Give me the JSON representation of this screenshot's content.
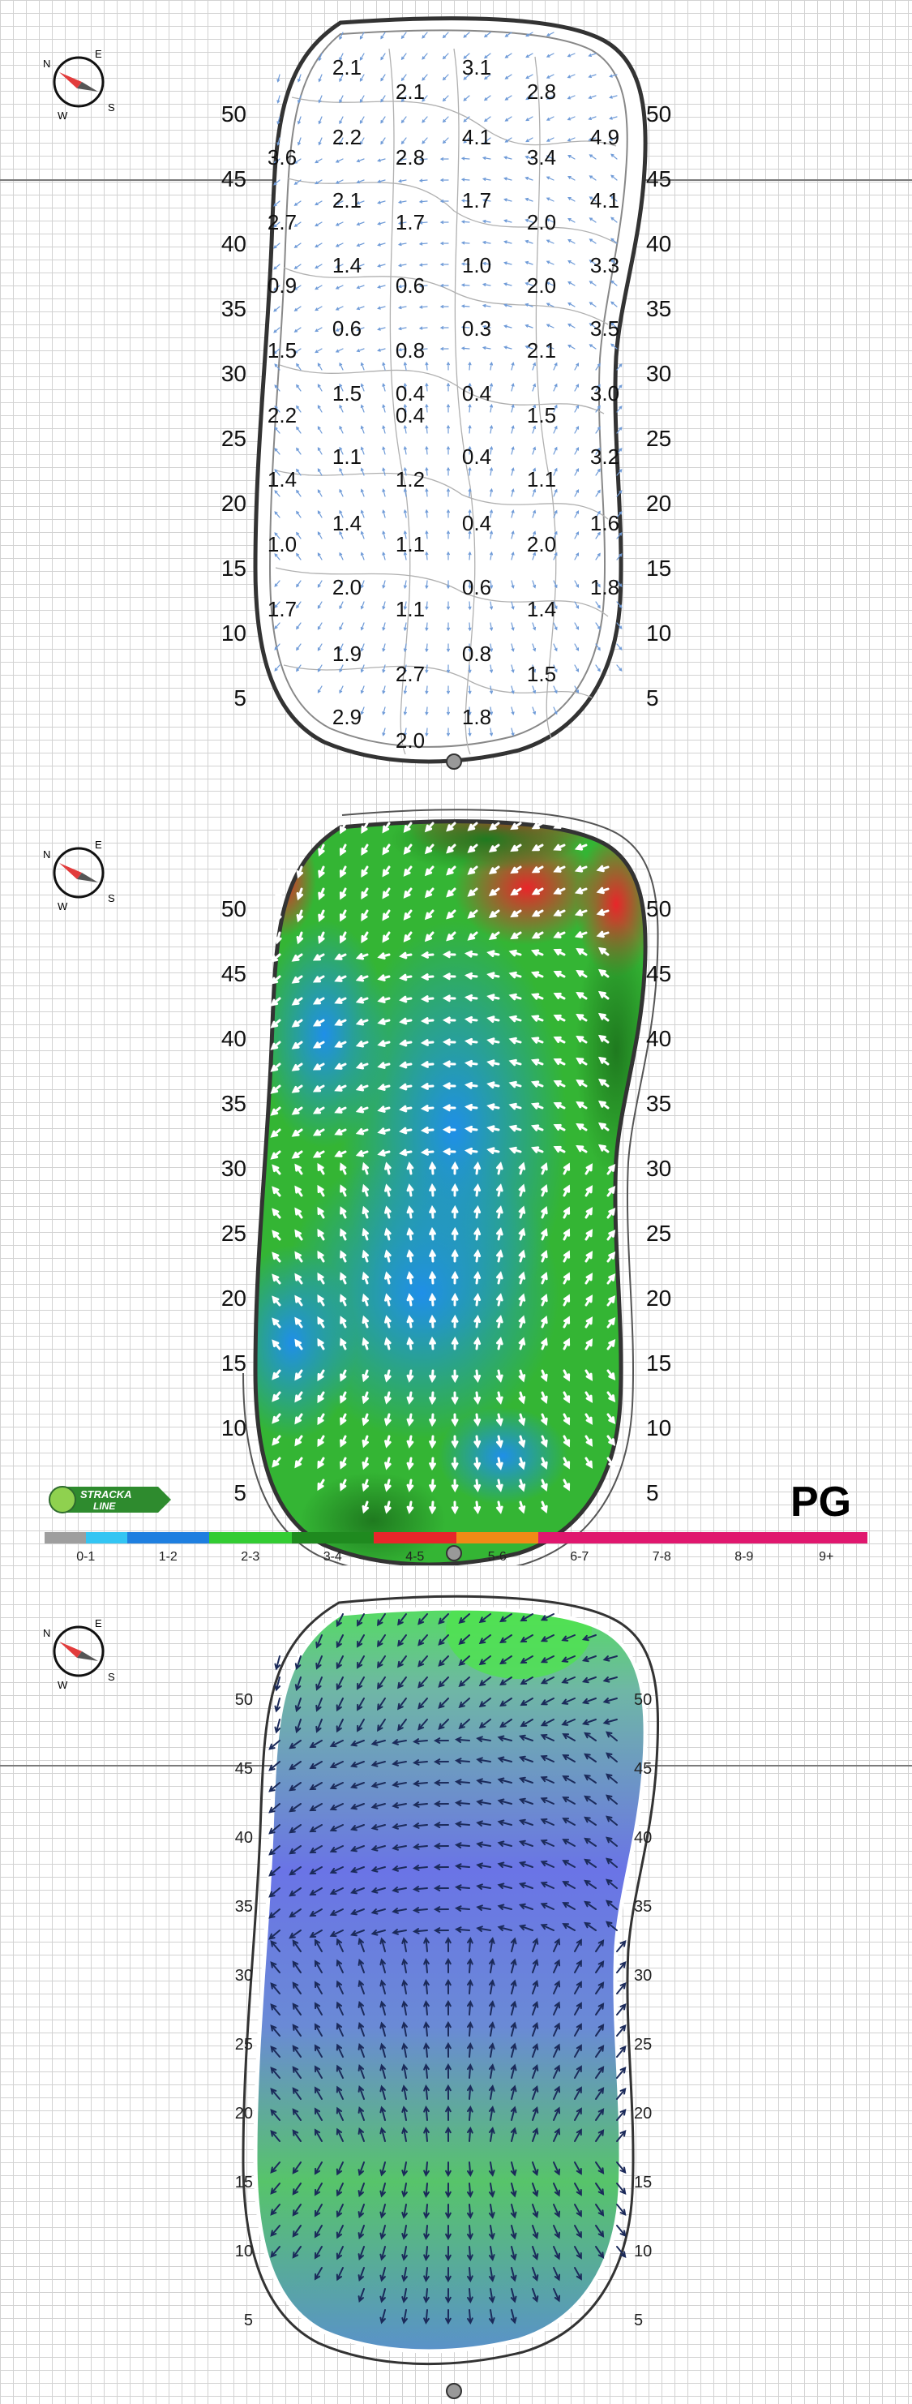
{
  "panels": [
    {
      "id": "contour-values",
      "values": [
        [
          "2.1",
          "3.1"
        ],
        [
          "2.1",
          "2.8"
        ],
        [
          "2.2",
          "4.1",
          "4.9"
        ],
        [
          "3.6",
          "2.8",
          "3.4"
        ],
        [
          "2.1",
          "1.7",
          "4.1"
        ],
        [
          "2.7",
          "1.7",
          "2.0"
        ],
        [
          "1.4",
          "1.0",
          "3.3"
        ],
        [
          "0.9",
          "0.6",
          "2.0"
        ],
        [
          "0.6",
          "0.3",
          "3.5"
        ],
        [
          "1.5",
          "0.8",
          "2.1"
        ],
        [
          "1.5",
          "0.4",
          "0.4",
          "3.0"
        ],
        [
          "2.2",
          "0.4",
          "1.5"
        ],
        [
          "1.1",
          "0.4",
          "3.2"
        ],
        [
          "1.4",
          "1.2",
          "1.1"
        ],
        [
          "1.4",
          "0.4",
          "1.6"
        ],
        [
          "1.0",
          "1.1",
          "2.0"
        ],
        [
          "2.0",
          "0.6",
          "1.8"
        ],
        [
          "1.7",
          "1.1",
          "1.4"
        ],
        [
          "1.9",
          "0.8"
        ],
        [
          "2.7",
          "1.5"
        ],
        [
          "2.9",
          "1.8"
        ],
        [
          "2.0"
        ]
      ]
    },
    {
      "id": "slope-color"
    },
    {
      "id": "drainage-arrows"
    }
  ],
  "axis_labels": {
    "left_ticks": [
      "50",
      "45",
      "40",
      "35",
      "30",
      "25",
      "20",
      "15",
      "10",
      "5"
    ],
    "right_ticks": [
      "50",
      "45",
      "40",
      "35",
      "30",
      "25",
      "20",
      "15",
      "10",
      "5"
    ]
  },
  "compass": {
    "n": "N",
    "e": "E",
    "s": "S",
    "w": "W"
  },
  "legend": {
    "labels": [
      "0-1",
      "1-2",
      "2-3",
      "3-4",
      "4-5",
      "5-6",
      "6-7",
      "7-8",
      "8-9",
      "9+"
    ],
    "colors": [
      [
        "#9e9e9e",
        "#33c5f3"
      ],
      [
        "#1e7fe0",
        "#1e7fe0"
      ],
      [
        "#33cc33",
        "#33cc33"
      ],
      [
        "#1f8a1f",
        "#1f8a1f"
      ],
      [
        "#e8262a",
        "#e8262a"
      ],
      [
        "#f08a16",
        "#f08a16"
      ],
      [
        "#e0176e",
        "#e0176e"
      ],
      [
        "#e0176e",
        "#e0176e"
      ],
      [
        "#e0176e",
        "#e0176e"
      ],
      [
        "#e0176e",
        "#e0176e"
      ]
    ],
    "grade": "PG",
    "brand": "STRACKA LINE"
  }
}
